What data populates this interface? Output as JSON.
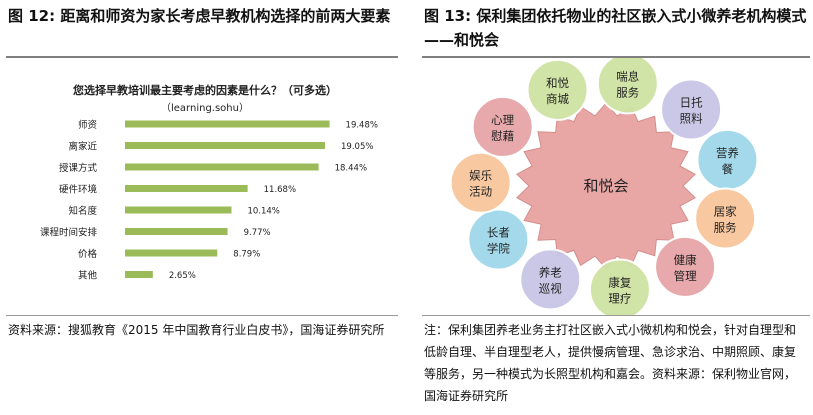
{
  "left": {
    "figure_title": "图 12: 距离和师资为家长考虑早教机构选择的前两大要素",
    "source_note": "资料来源：搜狐教育《2015 年中国教育行业白皮书》，国海证券研究所"
  },
  "right": {
    "figure_title": "图 13: 保利集团依托物业的社区嵌入式小微养老机构模式——和悦会",
    "center_label": "和悦会",
    "ring_items": [
      {
        "label": "喘息服务",
        "color": "#cfe3a3"
      },
      {
        "label": "日托照料",
        "color": "#c9c6e6"
      },
      {
        "label": "营养餐",
        "color": "#9fd8ea"
      },
      {
        "label": "居家服务",
        "color": "#f8c79c"
      },
      {
        "label": "健康管理",
        "color": "#e6a5a7"
      },
      {
        "label": "康复理疗",
        "color": "#cfe3a3"
      },
      {
        "label": "养老巡视",
        "color": "#c9c6e6"
      },
      {
        "label": "长者学院",
        "color": "#9fd8ea"
      },
      {
        "label": "娱乐活动",
        "color": "#f8c79c"
      },
      {
        "label": "心理慰藉",
        "color": "#e6a5a7"
      },
      {
        "label": "和悦商城",
        "color": "#cfe3a3"
      }
    ],
    "note": "注：保利集团养老业务主打社区嵌入式小微机构和悦会，针对自理型和低龄自理、半自理型老人，提供慢病管理、急诊求治、中期照顾、康复等服务，另一种模式为长照型机构和嘉会。资料来源：保利物业官网，国海证券研究所"
  },
  "chart_data": {
    "type": "bar",
    "orientation": "horizontal",
    "title": "您选择早教培训最主要考虑的因素是什么？（可多选）",
    "subtitle": "（learning.sohu）",
    "categories": [
      "师资",
      "离家近",
      "授课方式",
      "硬件环境",
      "知名度",
      "课程时间安排",
      "价格",
      "其他"
    ],
    "values": [
      19.48,
      19.05,
      18.44,
      11.68,
      10.14,
      9.77,
      8.79,
      2.65
    ],
    "value_labels": [
      "19.48%",
      "19.05%",
      "18.44%",
      "11.68%",
      "10.14%",
      "9.77%",
      "8.79%",
      "2.65%"
    ],
    "bar_color": "#9bbb59",
    "xlim": [
      0,
      20
    ]
  }
}
